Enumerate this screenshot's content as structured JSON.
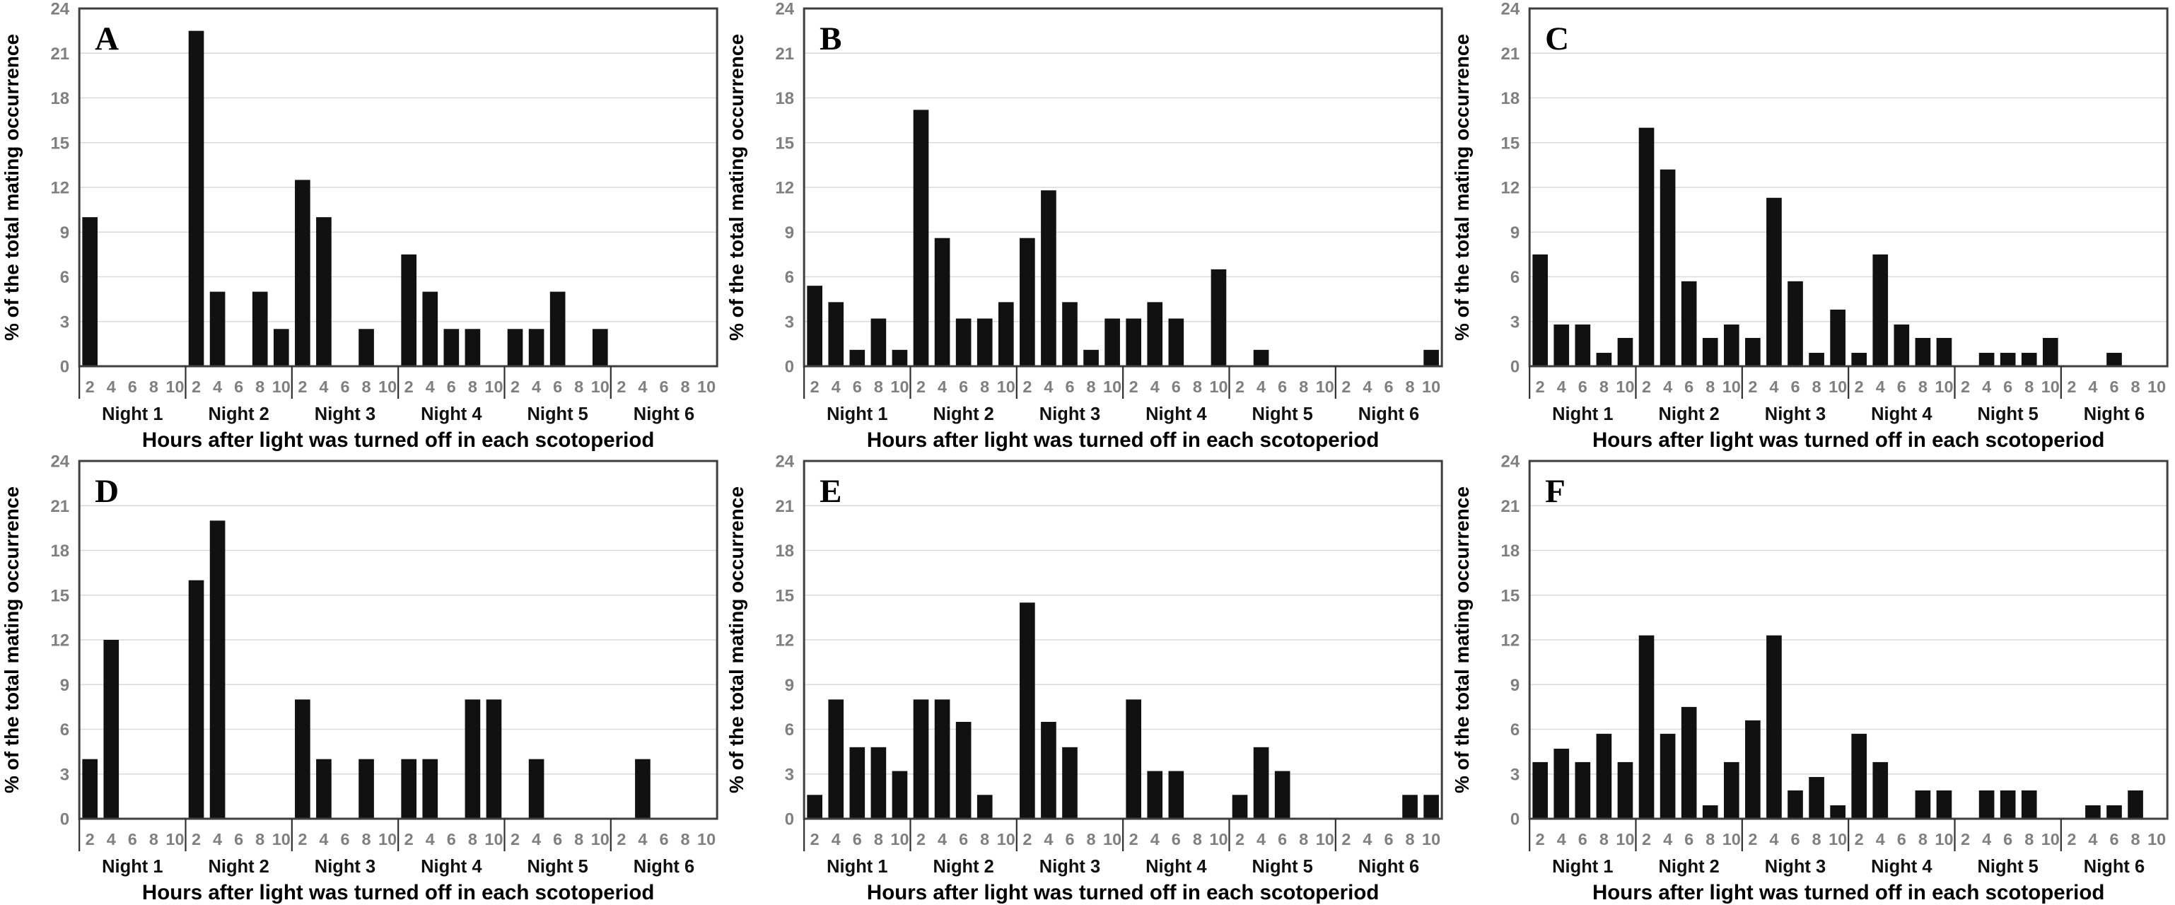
{
  "figure": {
    "panels_order": [
      "A",
      "B",
      "C",
      "D",
      "E",
      "F"
    ],
    "ylabel": "% of the total mating occurrence",
    "xlabel": "Hours after light was turned off in each scotoperiod"
  },
  "style": {
    "bar_color": "#111111",
    "grid_color": "#d9d9d9",
    "border_color": "#3f3f3f",
    "separator_color": "#2f2f2f",
    "tick_label_color": "#808080",
    "night_label_color": "#111111",
    "title_color": "#000000",
    "background": "#ffffff"
  },
  "chart_data": [
    {
      "type": "bar",
      "panel_label": "A",
      "title": "",
      "ylabel": "% of the total mating occurrence",
      "xlabel": "Hours after light was turned off in each scotoperiod",
      "ylim": [
        0,
        24
      ],
      "ytick_step": 3,
      "grid": true,
      "legend": "none",
      "hours": [
        "2",
        "4",
        "6",
        "8",
        "10"
      ],
      "night_labels": [
        "Night 1",
        "Night 2",
        "Night 3",
        "Night 4",
        "Night 5",
        "Night 6"
      ],
      "values_by_night": [
        [
          10,
          0,
          0,
          0,
          0
        ],
        [
          22.5,
          5,
          0,
          5,
          2.5
        ],
        [
          12.5,
          10,
          0,
          2.5,
          0
        ],
        [
          7.5,
          5,
          2.5,
          2.5,
          0
        ],
        [
          2.5,
          2.5,
          5,
          0,
          2.5
        ],
        [
          0,
          0,
          0,
          0,
          0
        ]
      ]
    },
    {
      "type": "bar",
      "panel_label": "B",
      "title": "",
      "ylabel": "% of the total mating occurrence",
      "xlabel": "Hours after light was turned off in each scotoperiod",
      "ylim": [
        0,
        24
      ],
      "ytick_step": 3,
      "grid": true,
      "legend": "none",
      "hours": [
        "2",
        "4",
        "6",
        "8",
        "10"
      ],
      "night_labels": [
        "Night 1",
        "Night 2",
        "Night 3",
        "Night 4",
        "Night 5",
        "Night 6"
      ],
      "values_by_night": [
        [
          5.4,
          4.3,
          1.1,
          3.2,
          1.1
        ],
        [
          17.2,
          8.6,
          3.2,
          3.2,
          4.3
        ],
        [
          8.6,
          11.8,
          4.3,
          1.1,
          3.2
        ],
        [
          3.2,
          4.3,
          3.2,
          0,
          6.5
        ],
        [
          0,
          1.1,
          0,
          0,
          0
        ],
        [
          0,
          0,
          0,
          0,
          1.1
        ]
      ]
    },
    {
      "type": "bar",
      "panel_label": "C",
      "title": "",
      "ylabel": "% of the total mating occurrence",
      "xlabel": "Hours after light was turned off in each scotoperiod",
      "ylim": [
        0,
        24
      ],
      "ytick_step": 3,
      "grid": true,
      "legend": "none",
      "hours": [
        "2",
        "4",
        "6",
        "8",
        "10"
      ],
      "night_labels": [
        "Night 1",
        "Night 2",
        "Night 3",
        "Night 4",
        "Night 5",
        "Night 6"
      ],
      "values_by_night": [
        [
          7.5,
          2.8,
          2.8,
          0.9,
          1.9
        ],
        [
          16,
          13.2,
          5.7,
          1.9,
          2.8
        ],
        [
          1.9,
          11.3,
          5.7,
          0.9,
          3.8
        ],
        [
          0.9,
          7.5,
          2.8,
          1.9,
          1.9
        ],
        [
          0,
          0.9,
          0.9,
          0.9,
          1.9
        ],
        [
          0,
          0,
          0.9,
          0,
          0
        ]
      ]
    },
    {
      "type": "bar",
      "panel_label": "D",
      "title": "",
      "ylabel": "% of the total mating occurrence",
      "xlabel": "Hours after light was turned off in each scotoperiod",
      "ylim": [
        0,
        24
      ],
      "ytick_step": 3,
      "grid": true,
      "legend": "none",
      "hours": [
        "2",
        "4",
        "6",
        "8",
        "10"
      ],
      "night_labels": [
        "Night 1",
        "Night 2",
        "Night 3",
        "Night 4",
        "Night 5",
        "Night 6"
      ],
      "values_by_night": [
        [
          4,
          12,
          0,
          0,
          0
        ],
        [
          16,
          20,
          0,
          0,
          0
        ],
        [
          8,
          4,
          0,
          4,
          0
        ],
        [
          4,
          4,
          0,
          8,
          8
        ],
        [
          0,
          4,
          0,
          0,
          0
        ],
        [
          0,
          4,
          0,
          0,
          0
        ]
      ]
    },
    {
      "type": "bar",
      "panel_label": "E",
      "title": "",
      "ylabel": "% of the total mating occurrence",
      "xlabel": "Hours after light was turned off in each scotoperiod",
      "ylim": [
        0,
        24
      ],
      "ytick_step": 3,
      "grid": true,
      "legend": "none",
      "hours": [
        "2",
        "4",
        "6",
        "8",
        "10"
      ],
      "night_labels": [
        "Night 1",
        "Night 2",
        "Night 3",
        "Night 4",
        "Night 5",
        "Night 6"
      ],
      "values_by_night": [
        [
          1.6,
          8,
          4.8,
          4.8,
          3.2
        ],
        [
          8,
          8,
          6.5,
          1.6,
          0
        ],
        [
          14.5,
          6.5,
          4.8,
          0,
          0
        ],
        [
          8,
          3.2,
          3.2,
          0,
          0
        ],
        [
          1.6,
          4.8,
          3.2,
          0,
          0
        ],
        [
          0,
          0,
          0,
          1.6,
          1.6
        ]
      ]
    },
    {
      "type": "bar",
      "panel_label": "F",
      "title": "",
      "ylabel": "% of the total mating occurrence",
      "xlabel": "Hours after light was turned off in each scotoperiod",
      "ylim": [
        0,
        24
      ],
      "ytick_step": 3,
      "grid": true,
      "legend": "none",
      "hours": [
        "2",
        "4",
        "6",
        "8",
        "10"
      ],
      "night_labels": [
        "Night 1",
        "Night 2",
        "Night 3",
        "Night 4",
        "Night 5",
        "Night 6"
      ],
      "values_by_night": [
        [
          3.8,
          4.7,
          3.8,
          5.7,
          3.8
        ],
        [
          12.3,
          5.7,
          7.5,
          0.9,
          3.8
        ],
        [
          6.6,
          12.3,
          1.9,
          2.8,
          0.9
        ],
        [
          5.7,
          3.8,
          0,
          1.9,
          1.9
        ],
        [
          0,
          1.9,
          1.9,
          1.9,
          0
        ],
        [
          0,
          0.9,
          0.9,
          1.9,
          0
        ]
      ]
    }
  ]
}
